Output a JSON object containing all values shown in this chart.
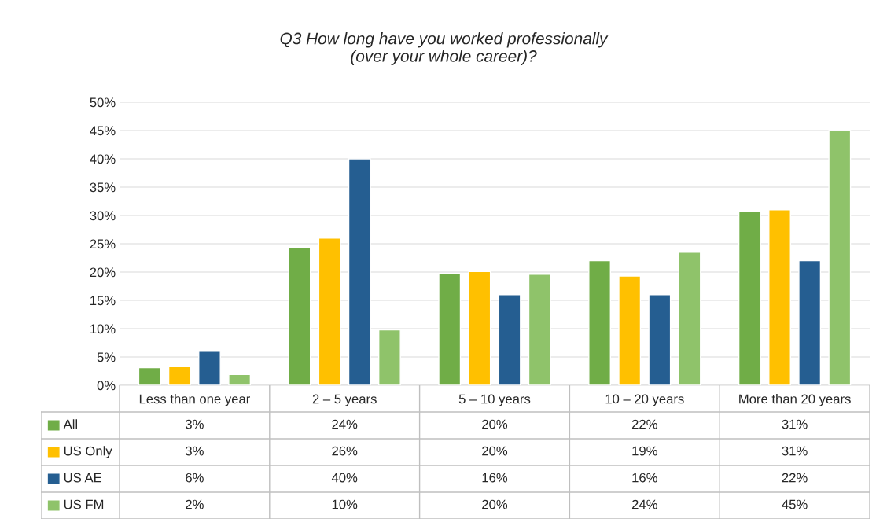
{
  "chart_data": {
    "type": "bar",
    "title": "Q3 How long have you worked professionally\n(over your whole career)?",
    "categories": [
      "Less than one year",
      "2 – 5 years",
      "5 – 10 years",
      "10 – 20 years",
      "More than 20 years"
    ],
    "series": [
      {
        "name": "All",
        "color": "#70ad47",
        "values": [
          3.1,
          24.3,
          19.7,
          22.0,
          30.7
        ],
        "value_labels": [
          "3%",
          "24%",
          "20%",
          "22%",
          "31%"
        ]
      },
      {
        "name": "US Only",
        "color": "#ffc000",
        "values": [
          3.3,
          26.0,
          20.1,
          19.3,
          31.0
        ],
        "value_labels": [
          "3%",
          "26%",
          "20%",
          "19%",
          "31%"
        ]
      },
      {
        "name": "US AE",
        "color": "#255e91",
        "values": [
          6.0,
          40.0,
          16.0,
          16.0,
          22.0
        ],
        "value_labels": [
          "6%",
          "40%",
          "16%",
          "16%",
          "22%"
        ]
      },
      {
        "name": "US FM",
        "color": "#8fc36a",
        "values": [
          1.9,
          9.8,
          19.6,
          23.5,
          45.0
        ],
        "value_labels": [
          "2%",
          "10%",
          "20%",
          "24%",
          "45%"
        ]
      }
    ],
    "ylim": [
      0,
      50
    ],
    "yticks": [
      {
        "value": 0,
        "label": "0%"
      },
      {
        "value": 5,
        "label": "5%"
      },
      {
        "value": 10,
        "label": "10%"
      },
      {
        "value": 15,
        "label": "15%"
      },
      {
        "value": 20,
        "label": "20%"
      },
      {
        "value": 25,
        "label": "25%"
      },
      {
        "value": 30,
        "label": "30%"
      },
      {
        "value": 35,
        "label": "35%"
      },
      {
        "value": 40,
        "label": "40%"
      },
      {
        "value": 45,
        "label": "45%"
      },
      {
        "value": 50,
        "label": "50%"
      }
    ],
    "grid": "y",
    "legend": "bottom"
  }
}
